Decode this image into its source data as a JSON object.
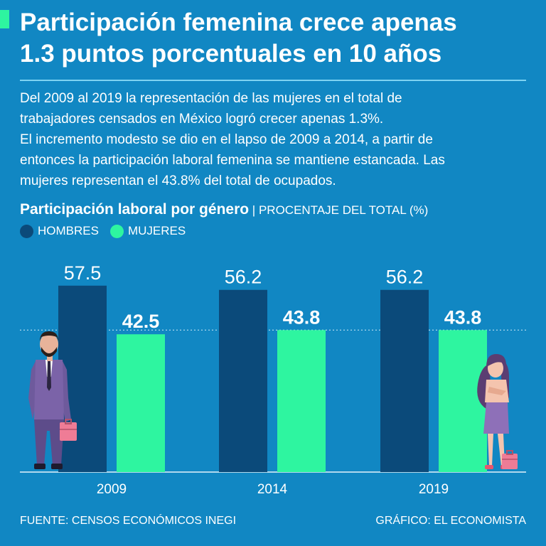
{
  "header": {
    "title_line1": "Participación femenina crece apenas",
    "title_line2": "1.3 puntos porcentuales en 10 años"
  },
  "intro": {
    "line1": "Del 2009 al 2019 la representación de las mujeres en el total de",
    "line2": "trabajadores censados en México logró crecer apenas 1.3%.",
    "line3": "El incremento modesto se dio en el lapso de 2009 a 2014, a partir de",
    "line4": "entonces la participación laboral femenina se mantiene estancada. Las",
    "line5": "mujeres representan el 43.8% del total de ocupados."
  },
  "chart_heading": {
    "title": "Participación laboral por género",
    "separator": " | ",
    "subtitle": "PROCENTAJE DEL TOTAL (%)"
  },
  "colors": {
    "background": "#1187c3",
    "hombres": "#0b4a7a",
    "mujeres": "#2ef5a0",
    "accent": "#2ef5a0"
  },
  "chart_data": {
    "type": "bar",
    "categories": [
      "2009",
      "2014",
      "2019"
    ],
    "series": [
      {
        "name": "HOMBRES",
        "values": [
          57.5,
          56.2,
          56.2
        ]
      },
      {
        "name": "MUJERES",
        "values": [
          42.5,
          43.8,
          43.8
        ]
      }
    ],
    "value_labels": [
      [
        "57.5",
        "56.2",
        "56.2"
      ],
      [
        "42.5",
        "43.8",
        "43.8"
      ]
    ],
    "ylim": [
      0,
      60
    ],
    "reference_line_value": 43.8,
    "legend_position": "top-left"
  },
  "footer": {
    "source": "FUENTE: CENSOS ECONÓMICOS INEGI",
    "credit": "GRÁFICO: EL ECONOMISTA"
  }
}
